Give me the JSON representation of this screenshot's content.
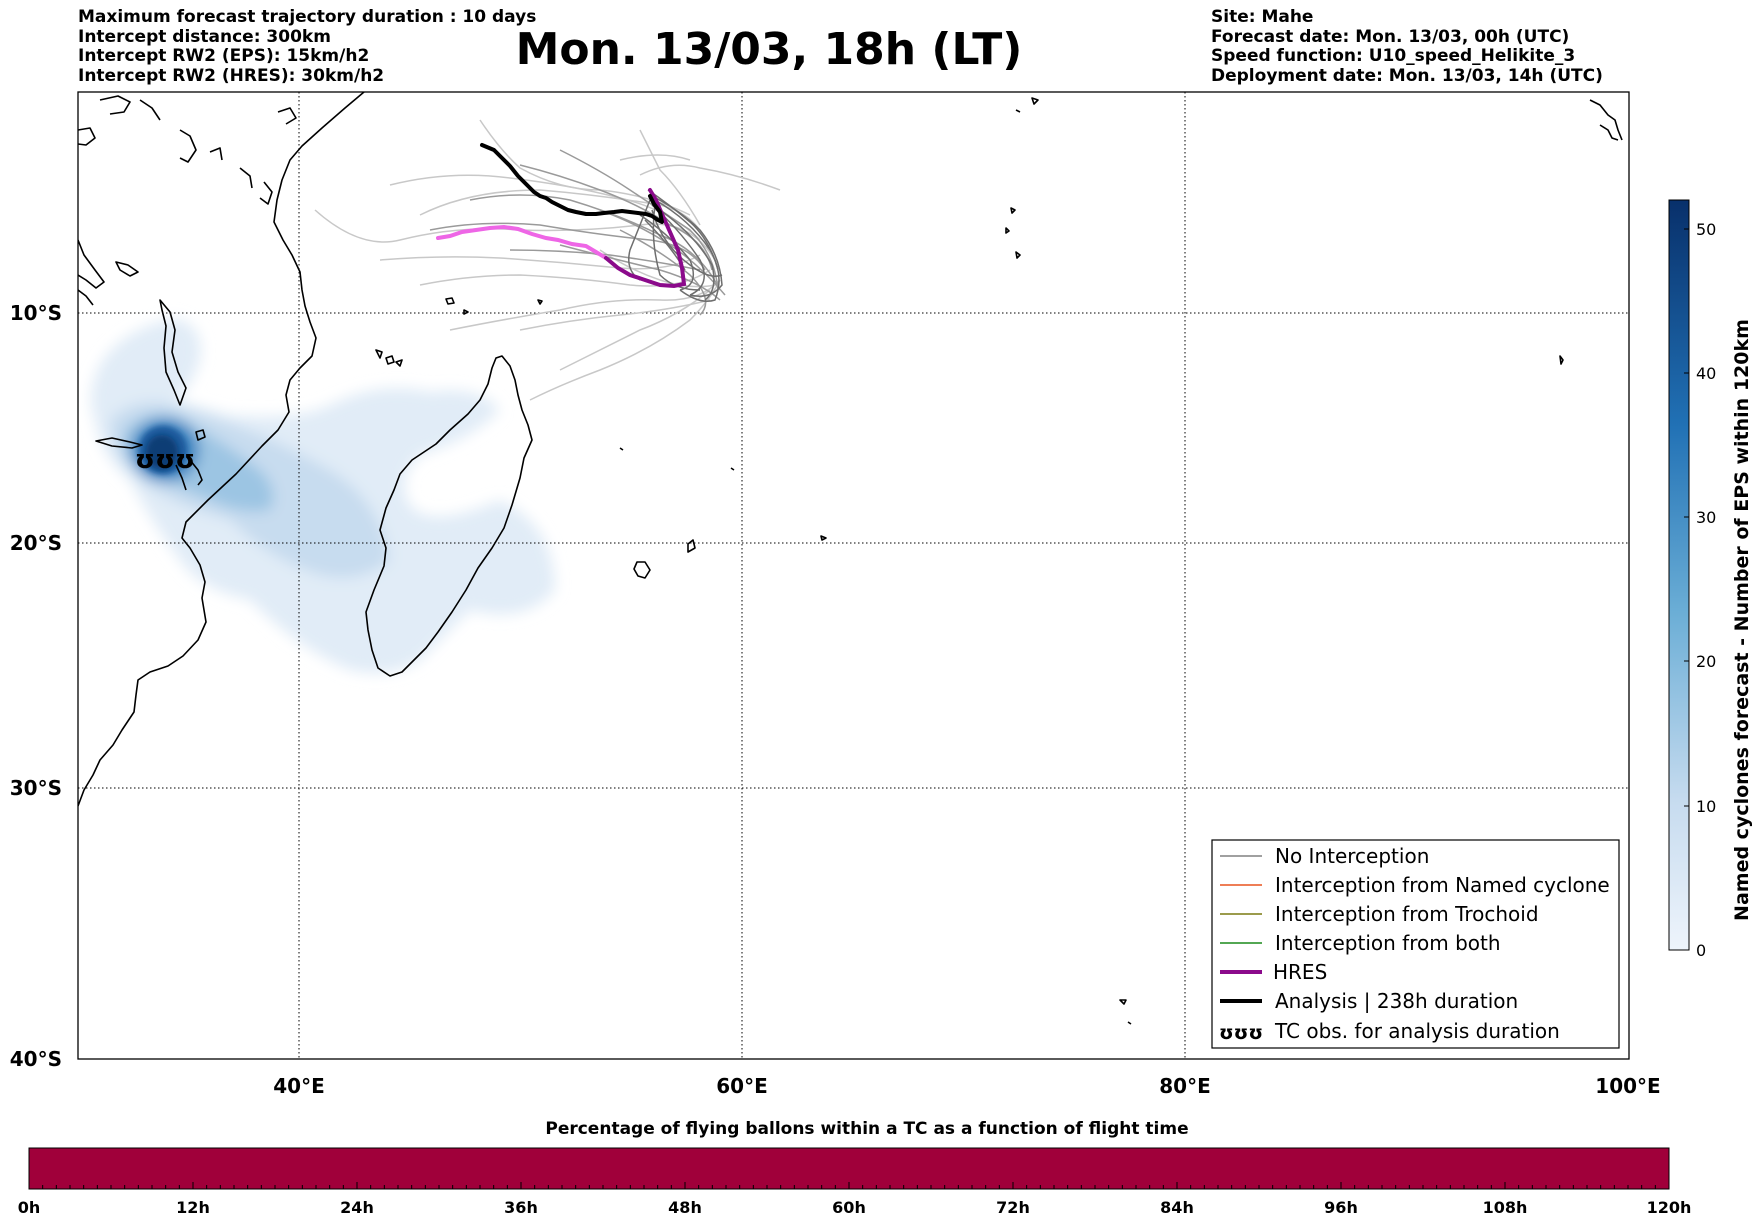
{
  "header": {
    "title": "Mon. 13/03, 18h (LT)",
    "left_lines": [
      "Maximum forecast trajectory duration : 10 days",
      "Intercept distance: 300km",
      "Intercept RW2 (EPS):  15km/h2",
      "Intercept RW2 (HRES): 30km/h2"
    ],
    "right_lines": [
      "Site: Mahe",
      "Forecast date: Mon. 13/03, 00h (UTC)",
      "Speed function: U10_speed_Helikite_3",
      "Deployment date: Mon. 13/03, 14h (UTC)"
    ]
  },
  "map": {
    "lon_range": [
      30,
      100
    ],
    "lat_range": [
      -40,
      -0.5
    ],
    "lon_ticks": [
      "40°E",
      "60°E",
      "80°E",
      "100°E"
    ],
    "lat_ticks": [
      "10°S",
      "20°S",
      "30°S",
      "40°S"
    ],
    "grid": true,
    "legend": {
      "position": "bottom-right",
      "entries": [
        {
          "label": "No Interception",
          "color": "#808080",
          "style": "thin"
        },
        {
          "label": "Interception from Named cyclone",
          "color": "#e8541f",
          "style": "thin"
        },
        {
          "label": "Interception from Trochoid",
          "color": "#7a7a10",
          "style": "thin"
        },
        {
          "label": "Interception from both",
          "color": "#1a8a1a",
          "style": "thin"
        },
        {
          "label": "HRES",
          "color": "#8b0a8b",
          "style": "thick"
        },
        {
          "label": "Analysis | 238h duration",
          "color": "#000000",
          "style": "thick"
        },
        {
          "label": "TC obs. for analysis duration",
          "color": "#000000",
          "style": "symbol"
        }
      ]
    },
    "tc_symbol": "ʊʊʊ"
  },
  "density_colorbar": {
    "label": "Named cyclones forecast - Number of EPS within 120km",
    "ticks": [
      "0",
      "10",
      "20",
      "30",
      "40",
      "50"
    ],
    "range": [
      0,
      52
    ],
    "colors": [
      "#eef4fb",
      "#c6dbef",
      "#6baed6",
      "#2171b5",
      "#08306b"
    ]
  },
  "time_bar": {
    "title": "Percentage of flying ballons within a TC as a function of flight time",
    "ticks": [
      "0h",
      "12h",
      "24h",
      "36h",
      "48h",
      "60h",
      "72h",
      "84h",
      "96h",
      "108h",
      "120h"
    ],
    "fill_color": "#a0003a"
  }
}
